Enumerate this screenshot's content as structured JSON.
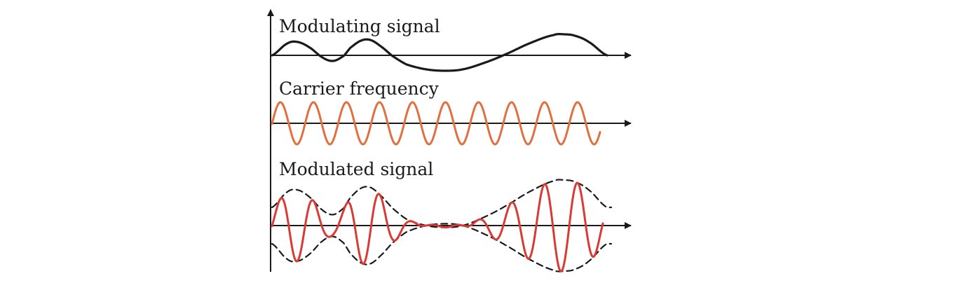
{
  "panels": [
    {
      "label": "Modulating signal"
    },
    {
      "label": "Carrier frequency"
    },
    {
      "label": "Modulated signal"
    }
  ],
  "colors": {
    "axis": "#1a1a1a",
    "modulating": "#1a1a1a",
    "carrier": "#e0703f",
    "modulated": "#d93a35",
    "envelope": "#1a1a1a"
  }
}
